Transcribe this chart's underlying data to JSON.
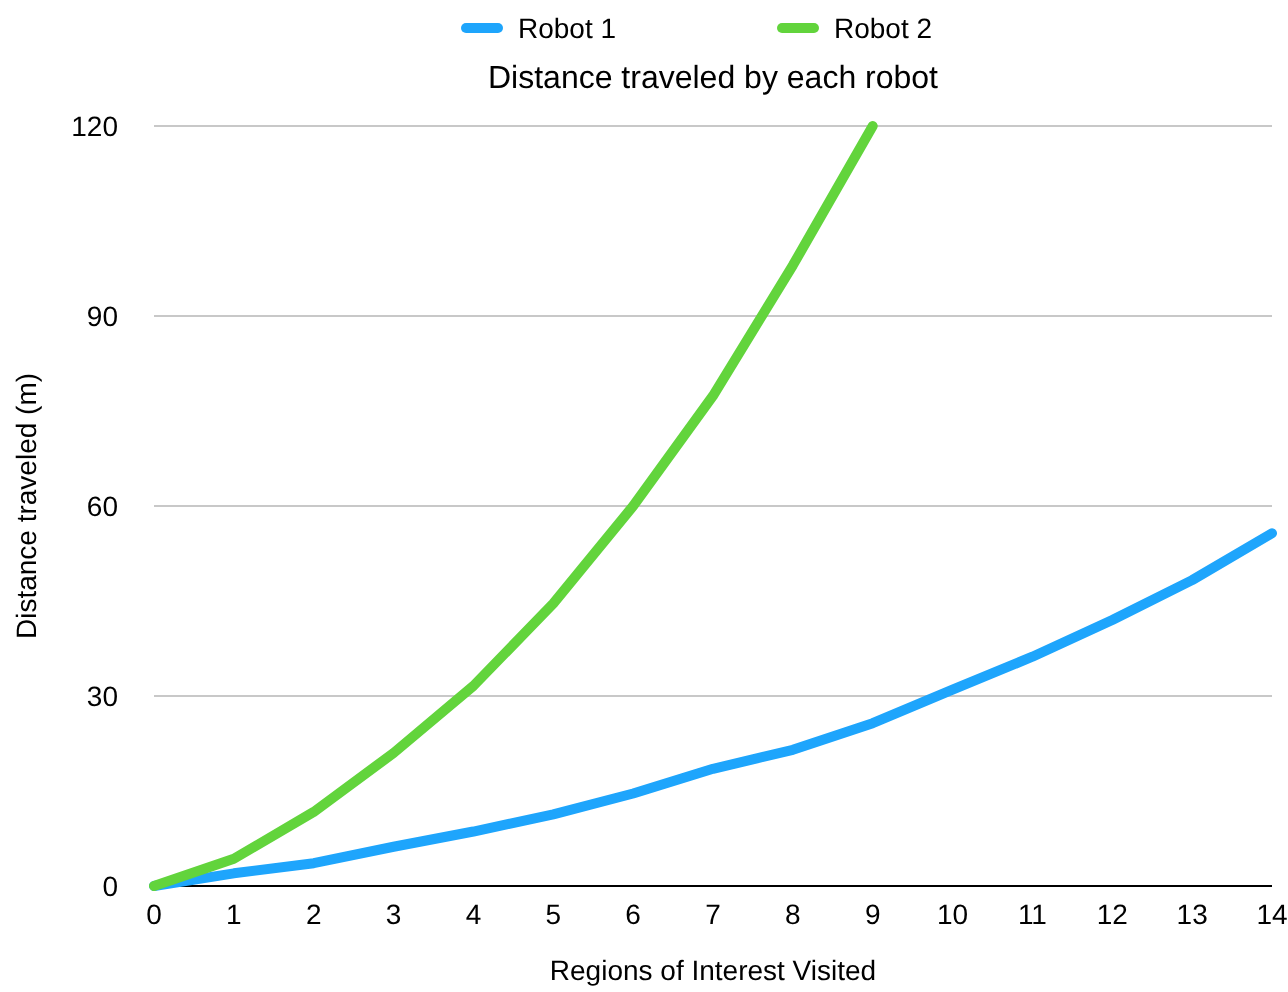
{
  "chart_data": {
    "type": "line",
    "title": "Distance traveled by each robot",
    "xlabel": "Regions of Interest Visited",
    "ylabel": "Distance traveled (m)",
    "x": [
      0,
      1,
      2,
      3,
      4,
      5,
      6,
      7,
      8,
      9,
      10,
      11,
      12,
      13,
      14
    ],
    "series": [
      {
        "name": "Robot 1",
        "color": "#1ea5fc",
        "values": [
          0,
          2,
          3.6,
          6.2,
          8.6,
          11.3,
          14.6,
          18.5,
          21.5,
          25.7,
          31,
          36.2,
          42,
          48.3,
          55.7
        ]
      },
      {
        "name": "Robot 2",
        "color": "#62d43c",
        "values": [
          0,
          4.3,
          11.7,
          21,
          31.6,
          44.6,
          60,
          77.4,
          98,
          120,
          null,
          null,
          null,
          null,
          null
        ]
      }
    ],
    "xlim": [
      0,
      14
    ],
    "xticks": [
      0,
      1,
      2,
      3,
      4,
      5,
      6,
      7,
      8,
      9,
      10,
      11,
      12,
      13,
      14
    ],
    "ylim": [
      0,
      120
    ],
    "yticks": [
      0,
      30,
      60,
      90,
      120
    ],
    "grid": "y",
    "legend": "top",
    "line_style": "solid",
    "marker": "none"
  }
}
